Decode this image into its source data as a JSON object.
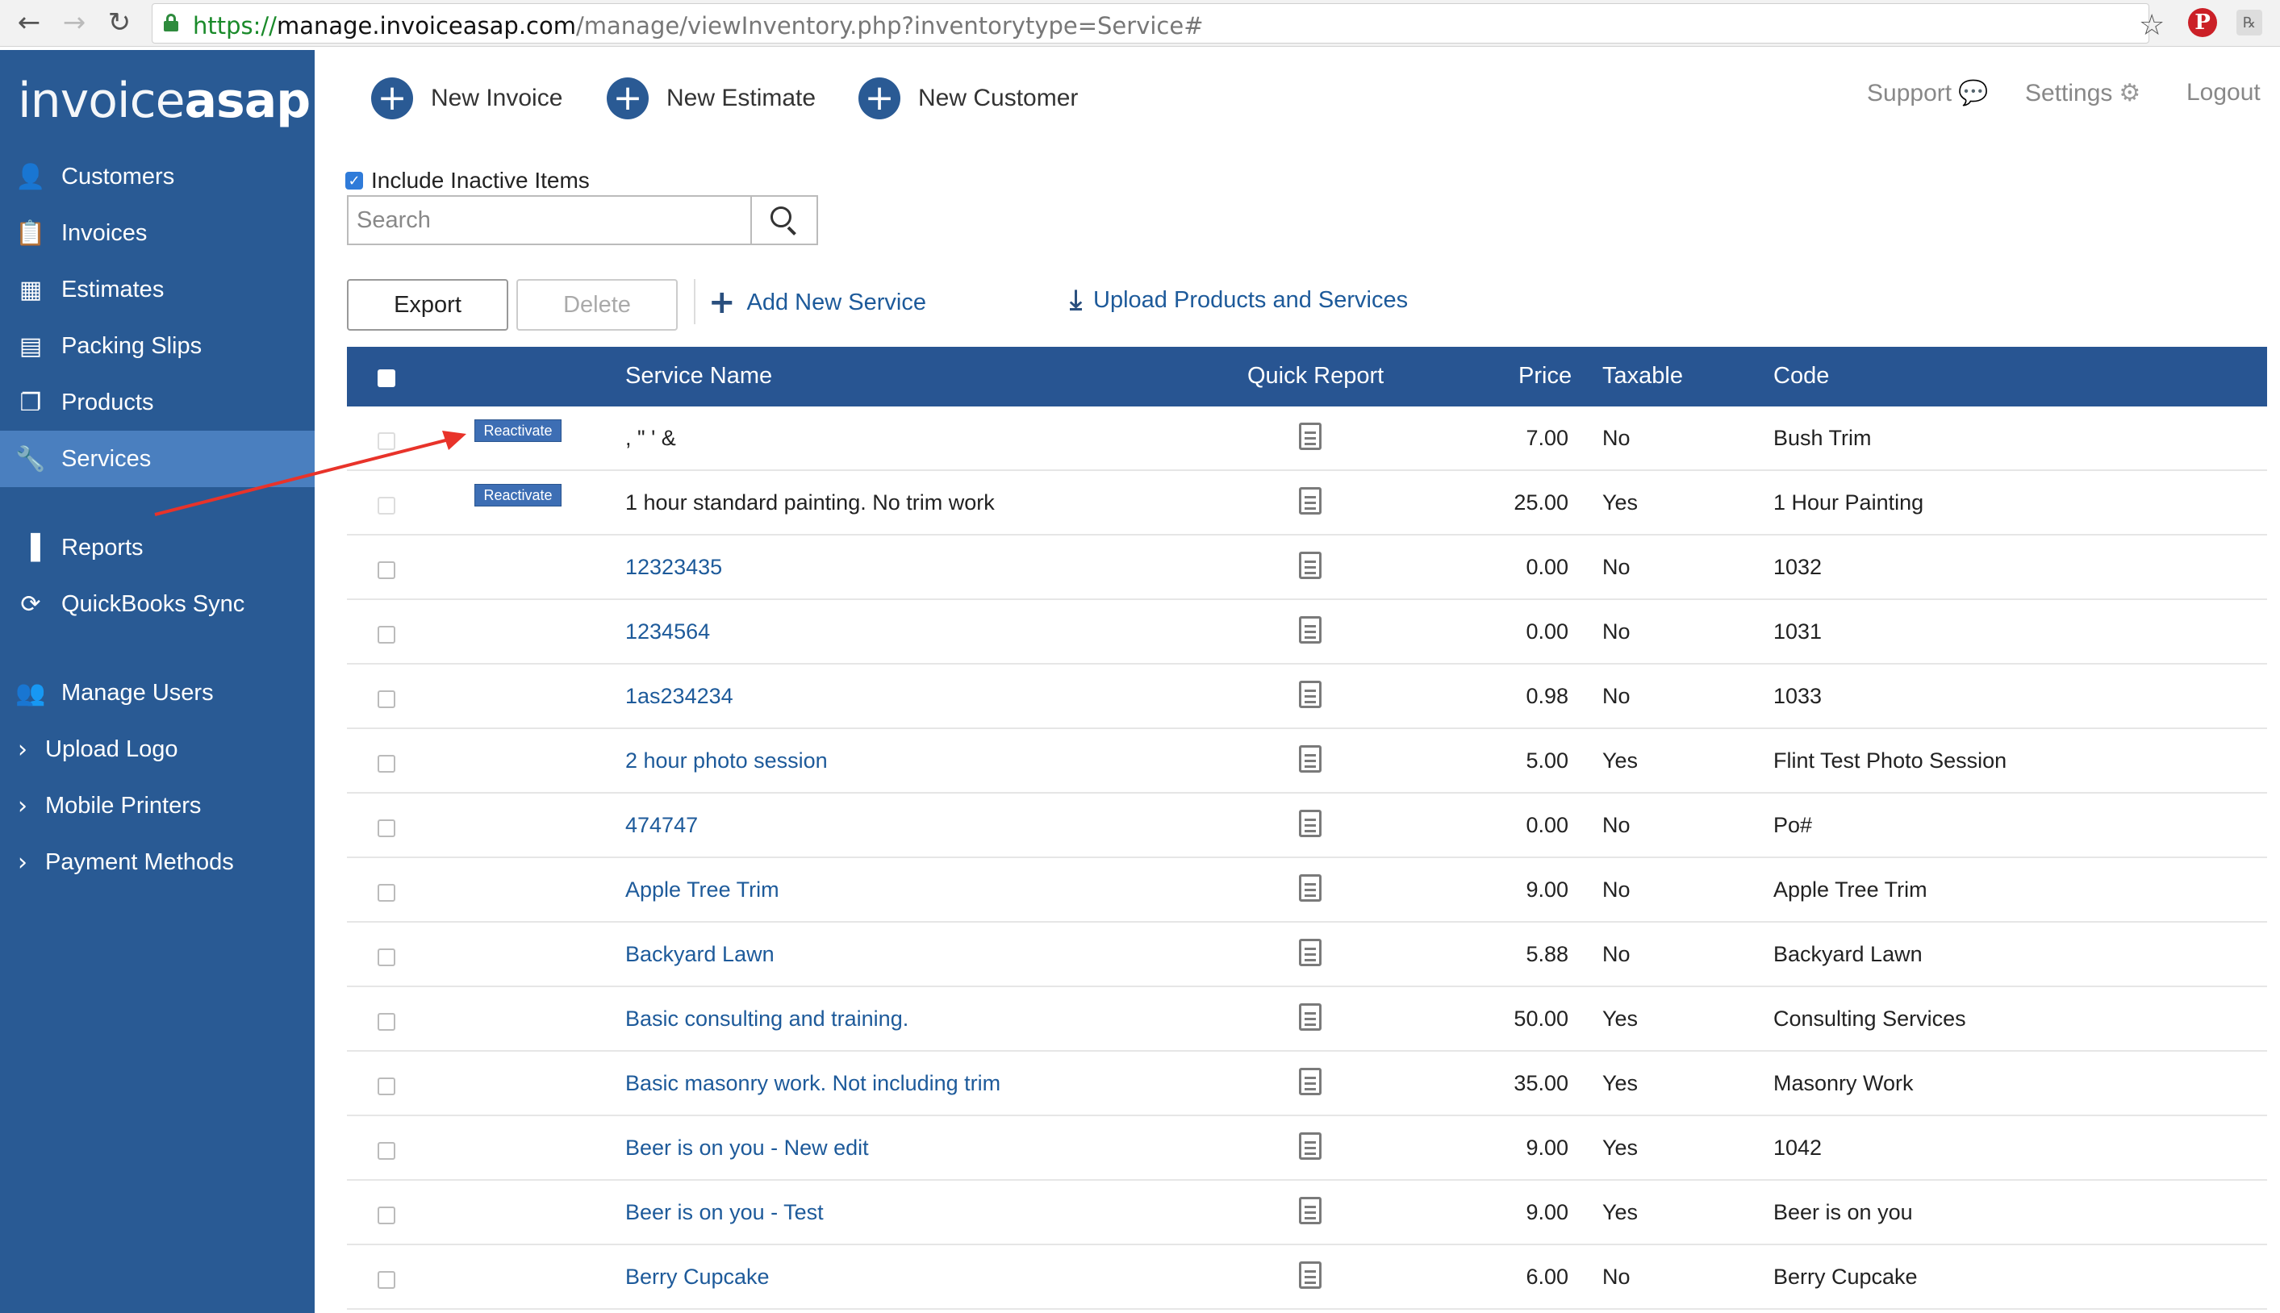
{
  "browser": {
    "url_proto": "https://",
    "url_host": "manage.invoiceasap.com",
    "url_path": "/manage/viewInventory.php?inventorytype=Service#",
    "icons": [
      "back-arrow-icon",
      "forward-arrow-icon",
      "reload-icon",
      "lock-icon",
      "star-icon",
      "pinterest-icon",
      "extension-icon"
    ]
  },
  "brand": {
    "logo_thin": "invoice",
    "logo_bold": "asap"
  },
  "sidebar": {
    "items": [
      {
        "label": "Customers",
        "icon": "user-icon"
      },
      {
        "label": "Invoices",
        "icon": "clipboard-icon"
      },
      {
        "label": "Estimates",
        "icon": "calculator-icon"
      },
      {
        "label": "Packing Slips",
        "icon": "packing-slip-icon"
      },
      {
        "label": "Products",
        "icon": "cube-icon"
      },
      {
        "label": "Services",
        "icon": "wrench-icon",
        "active": true
      },
      {
        "label": "Reports",
        "icon": "bar-chart-icon"
      },
      {
        "label": "QuickBooks Sync",
        "icon": "sync-icon"
      },
      {
        "label": "Manage Users",
        "icon": "users-icon"
      },
      {
        "label": "Upload Logo",
        "icon": "chevron-right-icon"
      },
      {
        "label": "Mobile Printers",
        "icon": "chevron-right-icon"
      },
      {
        "label": "Payment Methods",
        "icon": "chevron-right-icon"
      }
    ]
  },
  "topbar": {
    "new_invoice": "New Invoice",
    "new_estimate": "New Estimate",
    "new_customer": "New Customer",
    "support": "Support",
    "settings": "Settings",
    "logout": "Logout"
  },
  "controls": {
    "include_inactive": "Include Inactive Items",
    "include_inactive_checked": true,
    "search_placeholder": "Search",
    "export": "Export",
    "delete": "Delete",
    "add_new_service": "Add New Service",
    "upload": "Upload Products and Services"
  },
  "table": {
    "headers": {
      "name": "Service Name",
      "quick_report": "Quick Report",
      "price": "Price",
      "taxable": "Taxable",
      "code": "Code"
    },
    "reactivate_label": "Reactivate",
    "rows": [
      {
        "name": ", \" ' &",
        "price": "7.00",
        "taxable": "No",
        "code": "Bush Trim",
        "inactive": true
      },
      {
        "name": "1 hour standard painting. No trim work",
        "price": "25.00",
        "taxable": "Yes",
        "code": "1 Hour Painting",
        "inactive": true
      },
      {
        "name": "12323435",
        "price": "0.00",
        "taxable": "No",
        "code": "1032"
      },
      {
        "name": "1234564",
        "price": "0.00",
        "taxable": "No",
        "code": "1031"
      },
      {
        "name": "1as234234",
        "price": "0.98",
        "taxable": "No",
        "code": "1033"
      },
      {
        "name": "2 hour photo session",
        "price": "5.00",
        "taxable": "Yes",
        "code": "Flint Test Photo Session"
      },
      {
        "name": "474747",
        "price": "0.00",
        "taxable": "No",
        "code": "Po#"
      },
      {
        "name": "Apple Tree Trim",
        "price": "9.00",
        "taxable": "No",
        "code": "Apple Tree Trim"
      },
      {
        "name": "Backyard Lawn",
        "price": "5.88",
        "taxable": "No",
        "code": "Backyard Lawn"
      },
      {
        "name": "Basic consulting and training.",
        "price": "50.00",
        "taxable": "Yes",
        "code": "Consulting Services"
      },
      {
        "name": "Basic masonry work. Not including trim",
        "price": "35.00",
        "taxable": "Yes",
        "code": "Masonry Work"
      },
      {
        "name": "Beer is on you - New edit",
        "price": "9.00",
        "taxable": "Yes",
        "code": "1042"
      },
      {
        "name": "Beer is on you - Test",
        "price": "9.00",
        "taxable": "Yes",
        "code": "Beer is on you"
      },
      {
        "name": "Berry Cupcake",
        "price": "6.00",
        "taxable": "No",
        "code": "Berry Cupcake"
      }
    ]
  },
  "colors": {
    "sidebar": "#295a94",
    "sidebar_active": "#4a7fbf",
    "header": "#285592",
    "link": "#1d5a9a",
    "annotation_arrow": "#e8332a"
  }
}
